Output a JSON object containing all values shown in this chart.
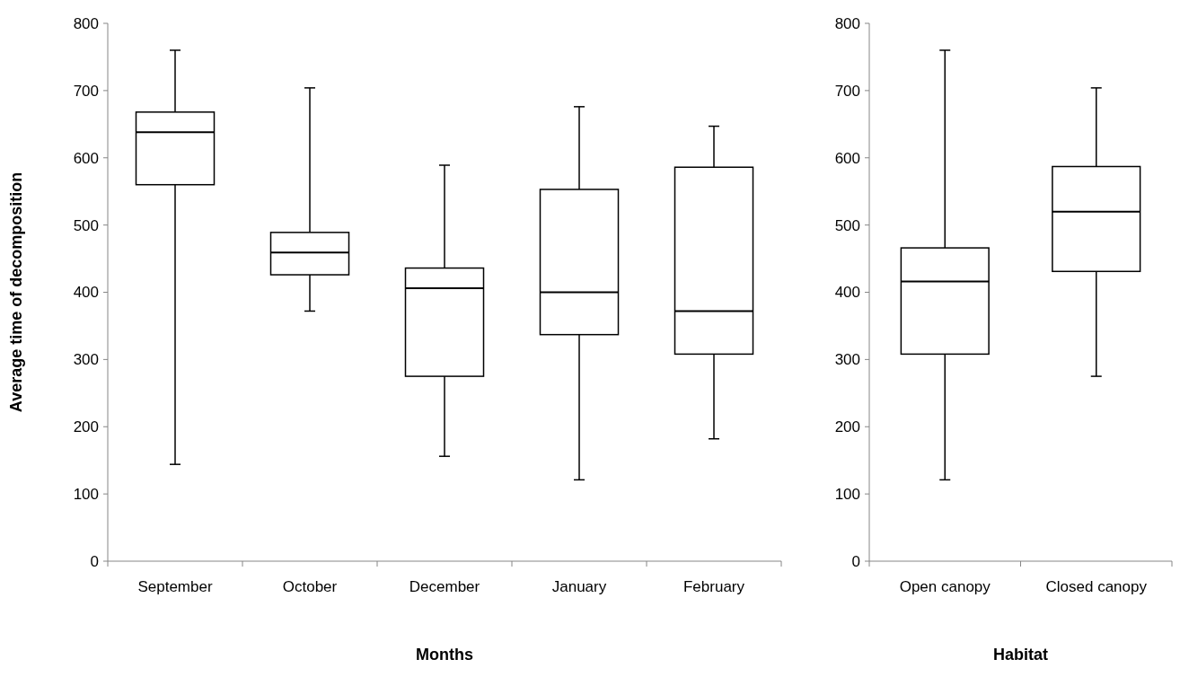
{
  "chart_data": [
    {
      "type": "box",
      "ylabel": "Average time of decomposition",
      "xlabel": "Months",
      "categories": [
        "September",
        "October",
        "December",
        "January",
        "February"
      ],
      "ylim": [
        0,
        800
      ],
      "yticks": [
        0,
        100,
        200,
        300,
        400,
        500,
        600,
        700,
        800
      ],
      "grid": false,
      "boxes": [
        {
          "low": 144,
          "q1": 560,
          "median": 638,
          "q3": 668,
          "high": 760
        },
        {
          "low": 372,
          "q1": 426,
          "median": 459,
          "q3": 489,
          "high": 704
        },
        {
          "low": 156,
          "q1": 275,
          "median": 406,
          "q3": 436,
          "high": 589
        },
        {
          "low": 121,
          "q1": 337,
          "median": 400,
          "q3": 553,
          "high": 676
        },
        {
          "low": 182,
          "q1": 308,
          "median": 372,
          "q3": 586,
          "high": 647
        }
      ]
    },
    {
      "type": "box",
      "xlabel": "Habitat",
      "categories": [
        "Open canopy",
        "Closed canopy"
      ],
      "ylim": [
        0,
        800
      ],
      "yticks": [
        0,
        100,
        200,
        300,
        400,
        500,
        600,
        700,
        800
      ],
      "grid": false,
      "boxes": [
        {
          "low": 121,
          "q1": 308,
          "median": 416,
          "q3": 466,
          "high": 760
        },
        {
          "low": 275,
          "q1": 431,
          "median": 520,
          "q3": 587,
          "high": 704
        }
      ]
    }
  ]
}
